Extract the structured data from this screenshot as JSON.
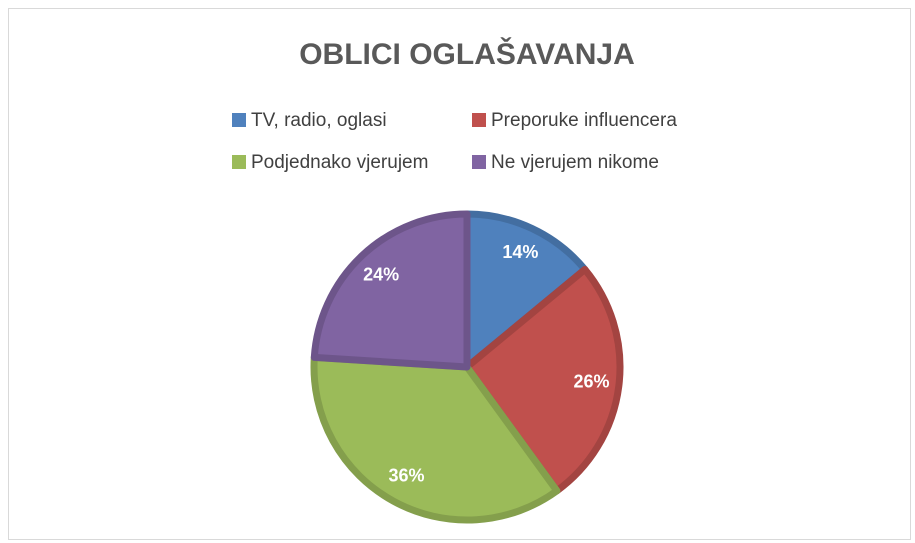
{
  "chart_data": {
    "type": "pie",
    "title": "OBLICI OGLAŠAVANJA",
    "categories": [
      "TV, radio, oglasi",
      "Preporuke influencera",
      "Podjednako vjerujem",
      "Ne vjerujem nikome"
    ],
    "values": [
      14,
      26,
      36,
      24
    ],
    "value_labels": [
      "14%",
      "26%",
      "36%",
      "24%"
    ],
    "colors": [
      "#4f81bd",
      "#c0504d",
      "#9bbb59",
      "#8064a2"
    ],
    "legend": "top"
  }
}
